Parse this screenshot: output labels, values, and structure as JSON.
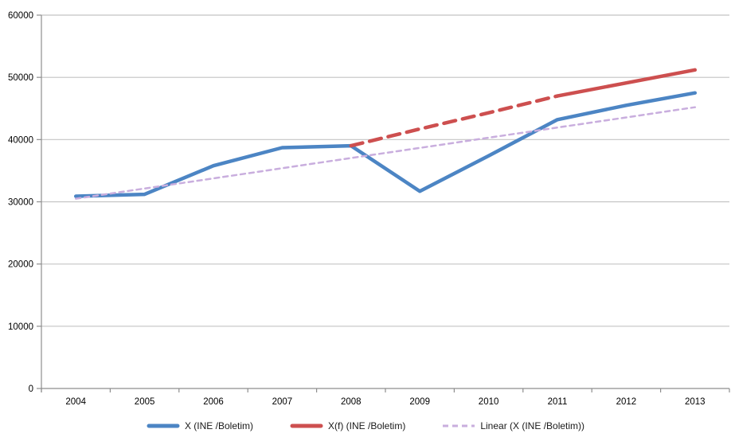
{
  "chart_data": {
    "type": "line",
    "title": "",
    "xlabel": "",
    "ylabel": "",
    "categories": [
      "2004",
      "2005",
      "2006",
      "2007",
      "2008",
      "2009",
      "2010",
      "2011",
      "2012",
      "2013"
    ],
    "y_ticks": [
      0,
      10000,
      20000,
      30000,
      40000,
      50000,
      60000
    ],
    "ylim": [
      0,
      60000
    ],
    "grid": "horizontal",
    "legend_position": "bottom",
    "series": [
      {
        "name": "X (INE /Boletim)",
        "color": "#4c85c4",
        "style": "solid",
        "width": 4.5,
        "values": [
          30900,
          31200,
          35800,
          38700,
          39000,
          31700,
          37400,
          43200,
          45500,
          47500
        ]
      },
      {
        "name": "X(f) (INE /Boletim)",
        "color": "#cd4f4f",
        "style": "dashed-then-solid",
        "solid_from_index": 7,
        "dash": "15,9",
        "width": 4.5,
        "values": [
          null,
          null,
          null,
          null,
          39000,
          41700,
          44300,
          47000,
          49100,
          51200
        ]
      },
      {
        "name": "Linear (X (INE /Boletim))",
        "color": "#c9aede",
        "style": "dashed",
        "dash": "6,5",
        "width": 2.5,
        "values": [
          30500,
          32133,
          33767,
          35400,
          37033,
          38667,
          40300,
          41933,
          43567,
          45200
        ]
      }
    ],
    "colors": {
      "grid": "#c4c4c4",
      "axis": "#8e8e8e",
      "tick_text": "#000000"
    }
  }
}
